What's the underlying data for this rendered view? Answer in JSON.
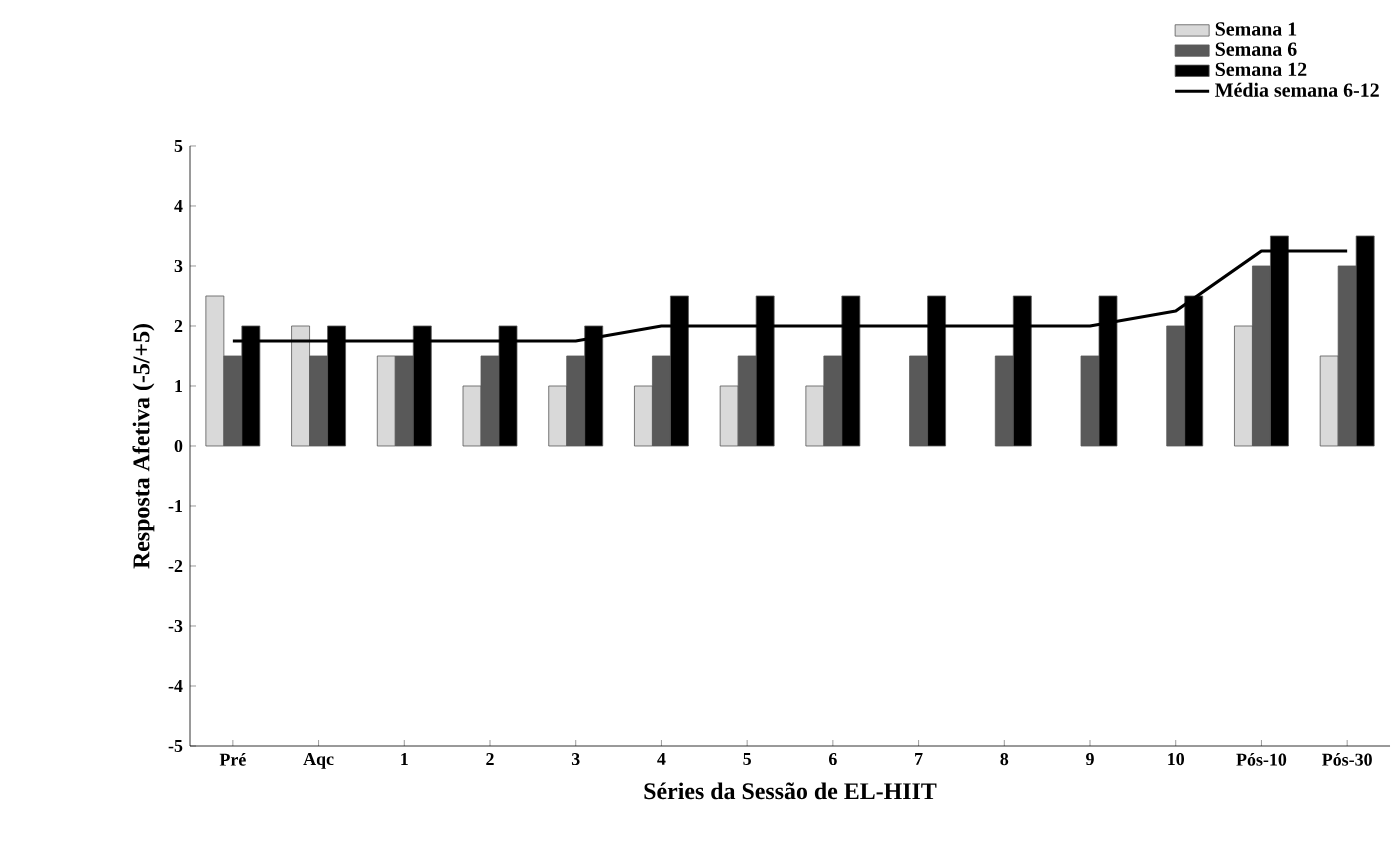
{
  "chart_data": {
    "type": "bar",
    "ylabel": "Resposta Afetiva (-5/+5)",
    "xlabel": "Séries da Sessão de EL-HIIT",
    "categories": [
      "Pré",
      "Aqc",
      "1",
      "2",
      "3",
      "4",
      "5",
      "6",
      "7",
      "8",
      "9",
      "10",
      "Pós-10",
      "Pós-30"
    ],
    "series": [
      {
        "name": "Semana 1",
        "color": "#d9d9d9",
        "values": [
          2.5,
          2,
          1.5,
          1,
          1,
          1,
          1,
          1,
          null,
          null,
          null,
          null,
          2,
          1.5
        ]
      },
      {
        "name": "Semana 6",
        "color": "#595959",
        "values": [
          1.5,
          1.5,
          1.5,
          1.5,
          1.5,
          1.5,
          1.5,
          1.5,
          1.5,
          1.5,
          1.5,
          2,
          3,
          3
        ]
      },
      {
        "name": "Semana 12",
        "color": "#000000",
        "values": [
          2,
          2,
          2,
          2,
          2,
          2.5,
          2.5,
          2.5,
          2.5,
          2.5,
          2.5,
          2.5,
          3.5,
          3.5
        ]
      },
      {
        "name": "Média semana 6-12",
        "type": "line",
        "color": "#000000",
        "values": [
          1.75,
          1.75,
          1.75,
          1.75,
          1.75,
          2,
          2,
          2,
          2,
          2,
          2,
          2.25,
          3.25,
          3.25
        ]
      }
    ],
    "ylim": [
      -5,
      5
    ],
    "yticks": [
      -5,
      -4,
      -3,
      -2,
      -1,
      0,
      1,
      2,
      3,
      4,
      5
    ],
    "legend": "top right"
  }
}
